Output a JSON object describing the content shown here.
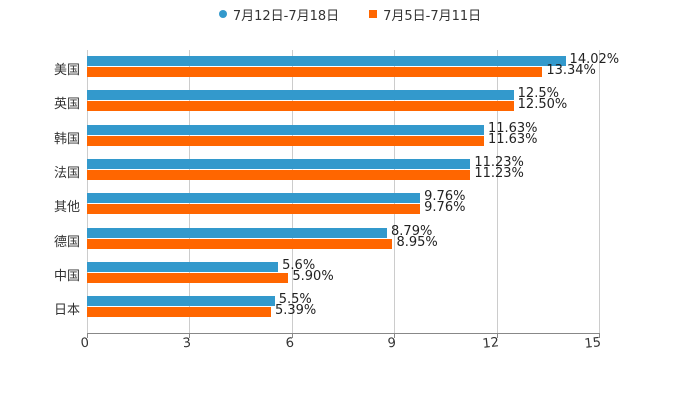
{
  "chart_data": {
    "type": "bar",
    "orientation": "horizontal",
    "title": "",
    "xlabel": "",
    "ylabel": "",
    "xlim": [
      0,
      15
    ],
    "xticks": [
      "0",
      "3",
      "6",
      "9",
      "12",
      "15"
    ],
    "grid": true,
    "legend_position": "top",
    "categories": [
      "美国",
      "英国",
      "韩国",
      "法国",
      "其他",
      "德国",
      "中国",
      "日本"
    ],
    "series": [
      {
        "name": "7月12日-7月18日",
        "color": "#3399cc",
        "values": [
          14.02,
          12.5,
          11.63,
          11.23,
          9.76,
          8.79,
          5.6,
          5.5
        ],
        "labels": [
          "14.02%",
          "12.5%",
          "11.63%",
          "11.23%",
          "9.76%",
          "8.79%",
          "5.6%",
          "5.5%"
        ]
      },
      {
        "name": "7月5日-7月11日",
        "color": "#ff6600",
        "values": [
          13.34,
          12.5,
          11.63,
          11.23,
          9.76,
          8.95,
          5.9,
          5.39
        ],
        "labels": [
          "13.34%",
          "12.50%",
          "11.63%",
          "11.23%",
          "9.76%",
          "8.95%",
          "5.90%",
          "5.39%"
        ]
      }
    ]
  },
  "legend": {
    "s0": "7月12日-7月18日",
    "s1": "7月5日-7月11日"
  }
}
